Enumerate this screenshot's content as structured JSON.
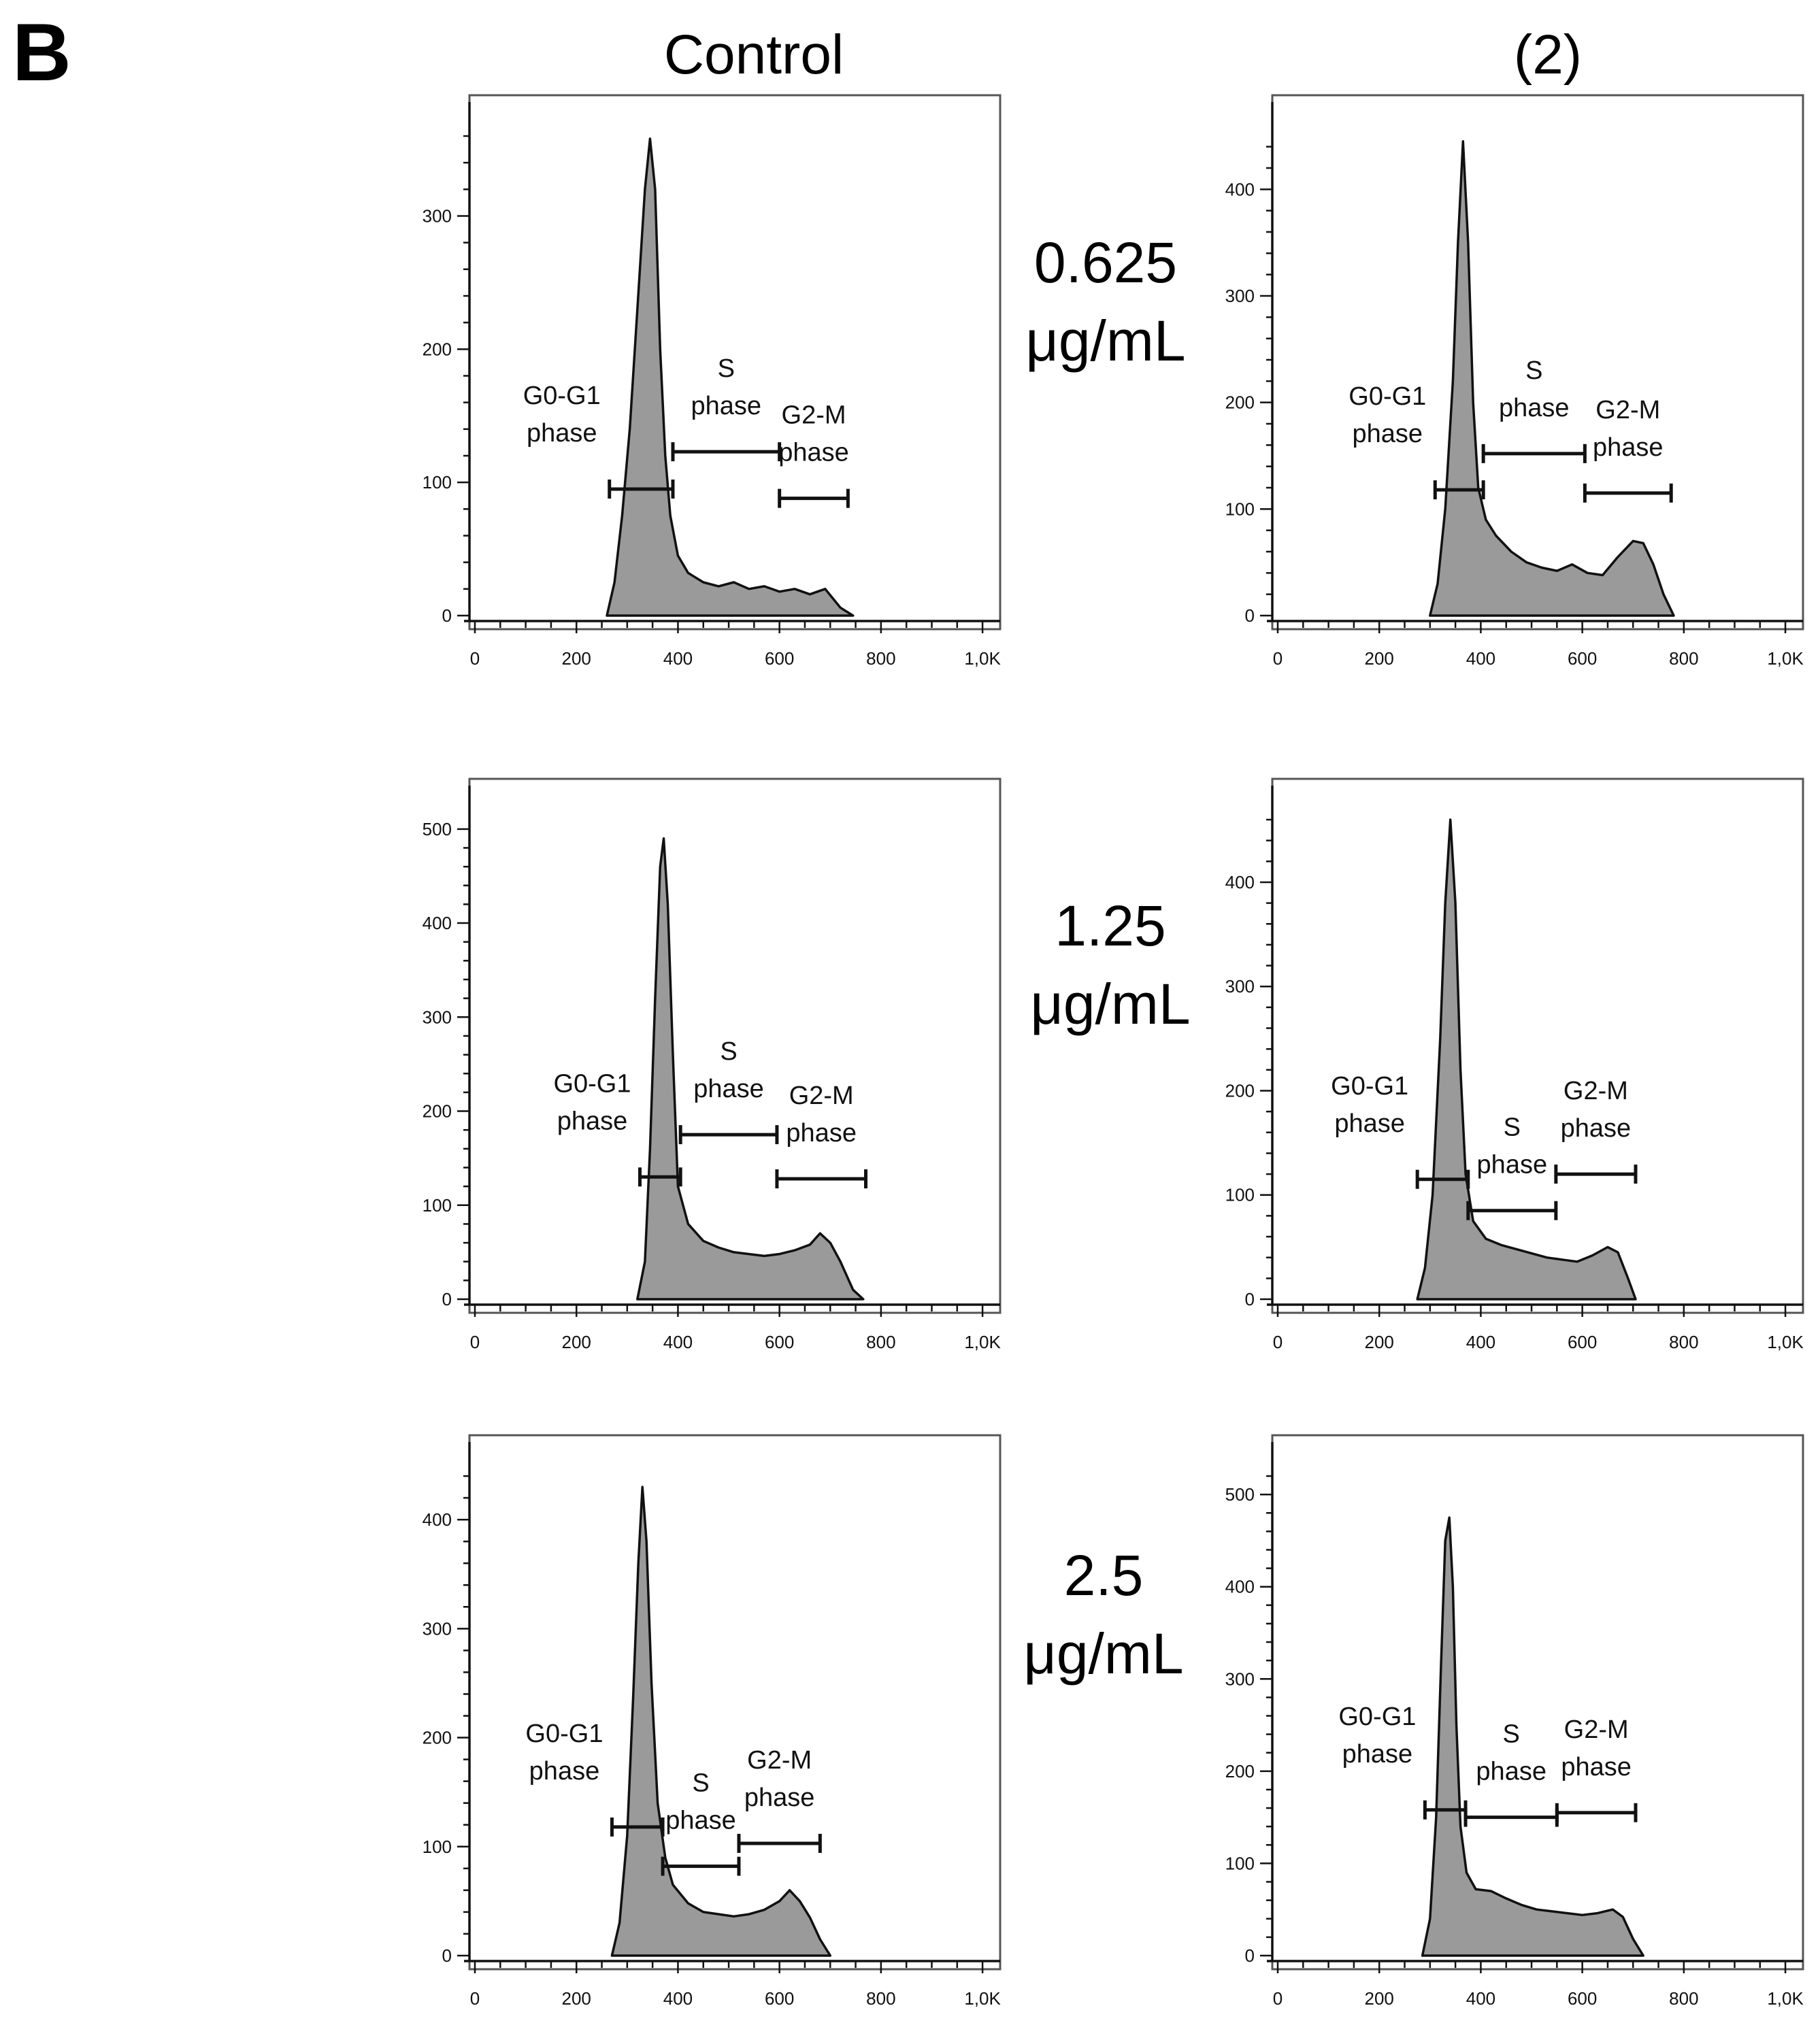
{
  "figure": {
    "panel_letter": "B",
    "columns": [
      "Control",
      "(2)"
    ],
    "row_labels": [
      [
        "0.625",
        "μg/mL"
      ],
      [
        "1.25",
        "μg/mL"
      ],
      [
        "2.5",
        "μg/mL"
      ]
    ]
  },
  "chart_data": [
    {
      "type": "area",
      "row": 0,
      "col": 0,
      "xlim": [
        0,
        1024
      ],
      "ylim": [
        0,
        360
      ],
      "xticks": [
        "0",
        "200",
        "400",
        "600",
        "800",
        "1,0K"
      ],
      "yticks": [
        0,
        100,
        200,
        300
      ],
      "x": [
        260,
        275,
        290,
        305,
        320,
        335,
        345,
        355,
        365,
        375,
        385,
        400,
        420,
        450,
        480,
        510,
        540,
        570,
        600,
        630,
        660,
        690,
        720,
        745
      ],
      "y": [
        0,
        25,
        75,
        140,
        230,
        320,
        358,
        320,
        200,
        120,
        75,
        45,
        32,
        25,
        22,
        25,
        20,
        22,
        18,
        20,
        16,
        20,
        6,
        0
      ],
      "gates": [
        {
          "name": "G0-G1 phase",
          "label": [
            "G0-G1",
            "phase"
          ],
          "x1": 265,
          "x2": 390,
          "y": 95
        },
        {
          "name": "S phase",
          "label": [
            "S",
            "phase"
          ],
          "x1": 390,
          "x2": 600,
          "y": 123
        },
        {
          "name": "G2-M phase",
          "label": [
            "G2-M",
            "phase"
          ],
          "x1": 600,
          "x2": 735,
          "y": 88
        }
      ]
    },
    {
      "type": "area",
      "row": 0,
      "col": 1,
      "xlim": [
        0,
        1024
      ],
      "ylim": [
        0,
        450
      ],
      "xticks": [
        "0",
        "200",
        "400",
        "600",
        "800",
        "1,0K"
      ],
      "yticks": [
        0,
        100,
        200,
        300,
        400
      ],
      "x": [
        300,
        315,
        330,
        345,
        355,
        365,
        375,
        385,
        395,
        410,
        430,
        460,
        490,
        520,
        550,
        580,
        610,
        640,
        670,
        700,
        720,
        740,
        760,
        780
      ],
      "y": [
        0,
        30,
        100,
        220,
        350,
        445,
        350,
        200,
        120,
        90,
        75,
        60,
        50,
        45,
        42,
        48,
        40,
        38,
        55,
        70,
        68,
        48,
        20,
        0
      ],
      "gates": [
        {
          "name": "G0-G1 phase",
          "label": [
            "G0-G1",
            "phase"
          ],
          "x1": 310,
          "x2": 405,
          "y": 118
        },
        {
          "name": "S phase",
          "label": [
            "S",
            "phase"
          ],
          "x1": 405,
          "x2": 605,
          "y": 152
        },
        {
          "name": "G2-M phase",
          "label": [
            "G2-M",
            "phase"
          ],
          "x1": 605,
          "x2": 775,
          "y": 115
        }
      ]
    },
    {
      "type": "area",
      "row": 1,
      "col": 0,
      "xlim": [
        0,
        1024
      ],
      "ylim": [
        0,
        510
      ],
      "xticks": [
        "0",
        "200",
        "400",
        "600",
        "800",
        "1,0K"
      ],
      "yticks": [
        0,
        100,
        200,
        300,
        400,
        500
      ],
      "x": [
        320,
        335,
        345,
        355,
        365,
        372,
        380,
        390,
        400,
        420,
        450,
        480,
        510,
        540,
        570,
        600,
        630,
        660,
        680,
        700,
        720,
        745,
        765
      ],
      "y": [
        0,
        40,
        160,
        320,
        460,
        490,
        420,
        260,
        120,
        80,
        62,
        55,
        50,
        48,
        46,
        48,
        52,
        58,
        70,
        60,
        40,
        10,
        0
      ],
      "gates": [
        {
          "name": "G0-G1 phase",
          "label": [
            "G0-G1",
            "phase"
          ],
          "x1": 325,
          "x2": 405,
          "y": 130
        },
        {
          "name": "S phase",
          "label": [
            "S",
            "phase"
          ],
          "x1": 405,
          "x2": 595,
          "y": 175
        },
        {
          "name": "G2-M phase",
          "label": [
            "G2-M",
            "phase"
          ],
          "x1": 595,
          "x2": 770,
          "y": 128
        }
      ]
    },
    {
      "type": "area",
      "row": 1,
      "col": 1,
      "xlim": [
        0,
        1024
      ],
      "ylim": [
        0,
        460
      ],
      "xticks": [
        "0",
        "200",
        "400",
        "600",
        "800",
        "1,0K"
      ],
      "yticks": [
        0,
        100,
        200,
        300,
        400
      ],
      "x": [
        275,
        290,
        305,
        320,
        330,
        340,
        350,
        360,
        370,
        385,
        410,
        440,
        470,
        500,
        530,
        560,
        590,
        620,
        650,
        670,
        690,
        705
      ],
      "y": [
        0,
        30,
        100,
        250,
        380,
        460,
        380,
        220,
        120,
        75,
        58,
        52,
        48,
        44,
        40,
        38,
        36,
        42,
        50,
        45,
        20,
        0
      ],
      "gates": [
        {
          "name": "G0-G1 phase",
          "label": [
            "G0-G1",
            "phase"
          ],
          "x1": 275,
          "x2": 375,
          "y": 115
        },
        {
          "name": "S phase",
          "label": [
            "S",
            "phase"
          ],
          "x1": 375,
          "x2": 548,
          "y": 85
        },
        {
          "name": "G2-M phase",
          "label": [
            "G2-M",
            "phase"
          ],
          "x1": 548,
          "x2": 705,
          "y": 120
        }
      ]
    },
    {
      "type": "area",
      "row": 2,
      "col": 0,
      "xlim": [
        0,
        1024
      ],
      "ylim": [
        0,
        440
      ],
      "xticks": [
        "0",
        "200",
        "400",
        "600",
        "800",
        "1,0K"
      ],
      "yticks": [
        0,
        100,
        200,
        300,
        400
      ],
      "x": [
        270,
        285,
        300,
        312,
        322,
        330,
        338,
        348,
        360,
        375,
        390,
        420,
        450,
        480,
        510,
        540,
        570,
        600,
        620,
        640,
        660,
        680,
        700
      ],
      "y": [
        0,
        30,
        110,
        240,
        360,
        430,
        380,
        250,
        140,
        90,
        65,
        48,
        40,
        38,
        36,
        38,
        42,
        50,
        60,
        50,
        35,
        15,
        0
      ],
      "gates": [
        {
          "name": "G0-G1 phase",
          "label": [
            "G0-G1",
            "phase"
          ],
          "x1": 270,
          "x2": 370,
          "y": 118
        },
        {
          "name": "S phase",
          "label": [
            "S",
            "phase"
          ],
          "x1": 370,
          "x2": 520,
          "y": 82
        },
        {
          "name": "G2-M phase",
          "label": [
            "G2-M",
            "phase"
          ],
          "x1": 520,
          "x2": 680,
          "y": 103
        }
      ]
    },
    {
      "type": "area",
      "row": 2,
      "col": 1,
      "xlim": [
        0,
        1024
      ],
      "ylim": [
        0,
        520
      ],
      "xticks": [
        "0",
        "200",
        "400",
        "600",
        "800",
        "1,0K"
      ],
      "yticks": [
        0,
        100,
        200,
        300,
        400,
        500
      ],
      "x": [
        285,
        300,
        312,
        322,
        330,
        338,
        345,
        352,
        360,
        372,
        390,
        420,
        450,
        480,
        510,
        540,
        570,
        600,
        630,
        660,
        680,
        700,
        720
      ],
      "y": [
        0,
        40,
        150,
        320,
        450,
        475,
        400,
        250,
        140,
        90,
        72,
        70,
        62,
        55,
        50,
        48,
        46,
        44,
        46,
        50,
        42,
        18,
        0
      ],
      "gates": [
        {
          "name": "G0-G1 phase",
          "label": [
            "G0-G1",
            "phase"
          ],
          "x1": 290,
          "x2": 370,
          "y": 158
        },
        {
          "name": "S phase",
          "label": [
            "S",
            "phase"
          ],
          "x1": 370,
          "x2": 550,
          "y": 150
        },
        {
          "name": "G2-M phase",
          "label": [
            "G2-M",
            "phase"
          ],
          "x1": 550,
          "x2": 705,
          "y": 155
        }
      ]
    }
  ]
}
